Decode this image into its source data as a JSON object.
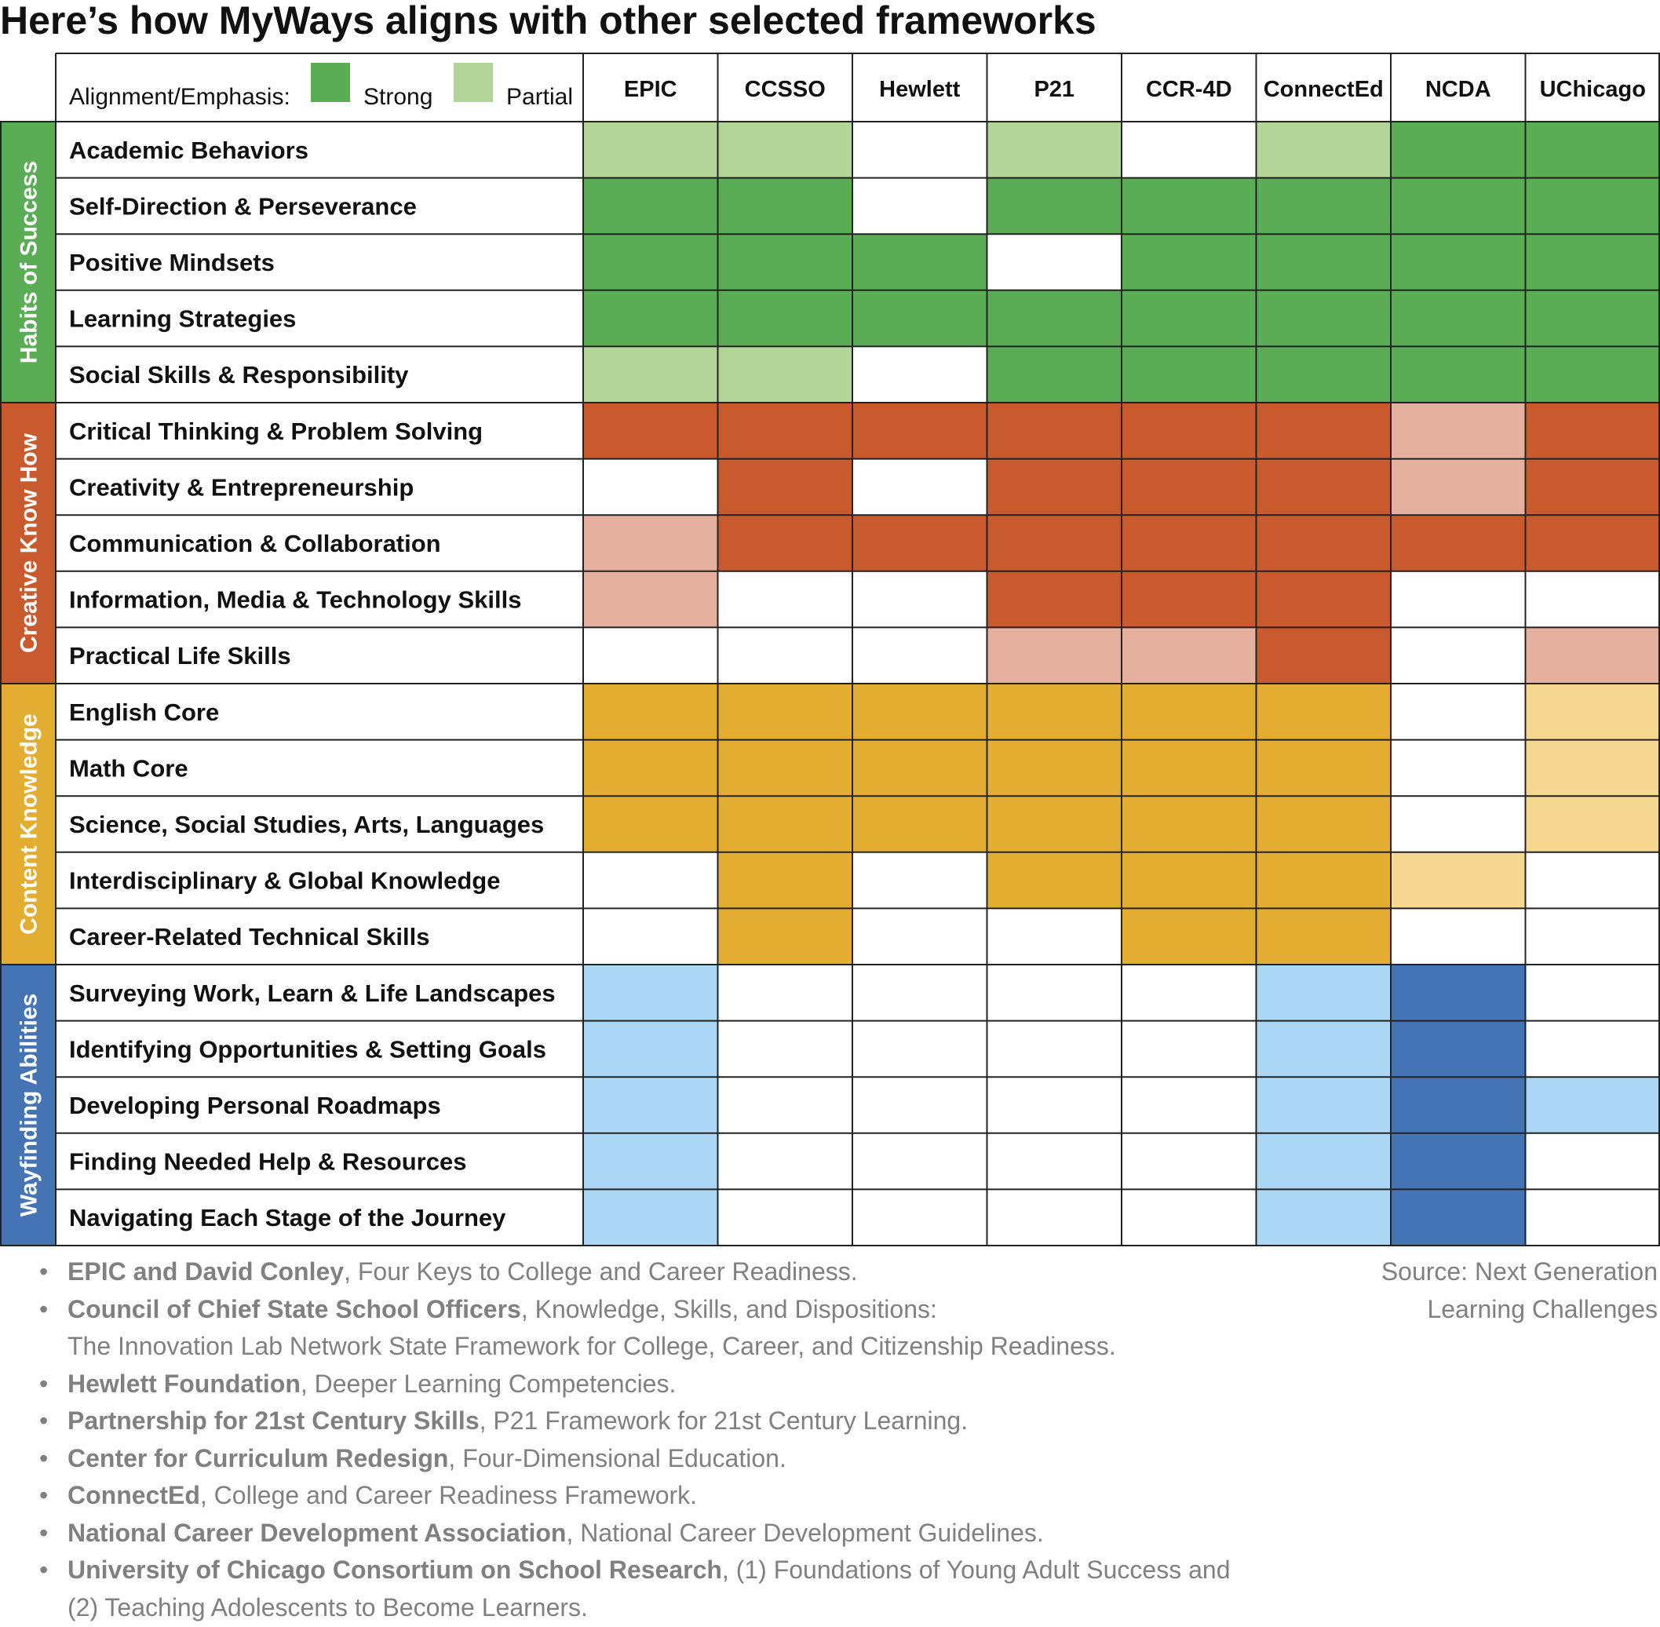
{
  "title": "Here’s how MyWays aligns with other selected frameworks",
  "legend": {
    "label": "Alignment/Emphasis:",
    "strong_label": "Strong",
    "partial_label": "Partial"
  },
  "chart_data": {
    "type": "heatmap",
    "title": "Here’s how MyWays aligns with other selected frameworks",
    "columns": [
      "EPIC",
      "CCSSO",
      "Hewlett",
      "P21",
      "CCR-4D",
      "ConnectEd",
      "NCDA",
      "UChicago"
    ],
    "value_legend": {
      "2": "Strong",
      "1": "Partial",
      "0": ""
    },
    "groups": [
      {
        "name": "Habits of Success",
        "strong_color": "#5aac55",
        "partial_color": "#b3d59a",
        "rows": [
          {
            "label": "Academic Behaviors",
            "values": [
              1,
              1,
              0,
              1,
              0,
              1,
              2,
              2
            ]
          },
          {
            "label": "Self-Direction & Perseverance",
            "values": [
              2,
              2,
              0,
              2,
              2,
              2,
              2,
              2
            ]
          },
          {
            "label": "Positive Mindsets",
            "values": [
              2,
              2,
              2,
              0,
              2,
              2,
              2,
              2
            ]
          },
          {
            "label": "Learning Strategies",
            "values": [
              2,
              2,
              2,
              2,
              2,
              2,
              2,
              2
            ]
          },
          {
            "label": "Social Skills & Responsibility",
            "values": [
              1,
              1,
              0,
              2,
              2,
              2,
              2,
              2
            ]
          }
        ]
      },
      {
        "name": "Creative Know How",
        "strong_color": "#c85a2e",
        "partial_color": "#e6b09e",
        "rows": [
          {
            "label": "Critical Thinking & Problem Solving",
            "values": [
              2,
              2,
              2,
              2,
              2,
              2,
              1,
              2
            ]
          },
          {
            "label": "Creativity & Entrepreneurship",
            "values": [
              0,
              2,
              0,
              2,
              2,
              2,
              1,
              2
            ]
          },
          {
            "label": "Communication & Collaboration",
            "values": [
              1,
              2,
              2,
              2,
              2,
              2,
              2,
              2
            ]
          },
          {
            "label": "Information, Media & Technology Skills",
            "values": [
              1,
              0,
              0,
              2,
              2,
              2,
              0,
              0
            ]
          },
          {
            "label": "Practical Life Skills",
            "values": [
              0,
              0,
              0,
              1,
              1,
              2,
              0,
              1
            ]
          }
        ]
      },
      {
        "name": "Content Knowledge",
        "strong_color": "#e2ad31",
        "partial_color": "#f6d890",
        "rows": [
          {
            "label": "English Core",
            "values": [
              2,
              2,
              2,
              2,
              2,
              2,
              0,
              1
            ]
          },
          {
            "label": "Math Core",
            "values": [
              2,
              2,
              2,
              2,
              2,
              2,
              0,
              1
            ]
          },
          {
            "label": "Science, Social Studies, Arts, Languages",
            "values": [
              2,
              2,
              2,
              2,
              2,
              2,
              0,
              1
            ]
          },
          {
            "label": "Interdisciplinary & Global Knowledge",
            "values": [
              0,
              2,
              0,
              2,
              2,
              2,
              1,
              0
            ]
          },
          {
            "label": "Career-Related Technical Skills",
            "values": [
              0,
              2,
              0,
              0,
              2,
              2,
              0,
              0
            ]
          }
        ]
      },
      {
        "name": "Wayfinding Abilities",
        "strong_color": "#4474b4",
        "partial_color": "#acd7f4",
        "rows": [
          {
            "label": "Surveying Work, Learn & Life Landscapes",
            "values": [
              1,
              0,
              0,
              0,
              0,
              1,
              2,
              0
            ]
          },
          {
            "label": "Identifying Opportunities & Setting Goals",
            "values": [
              1,
              0,
              0,
              0,
              0,
              1,
              2,
              0
            ]
          },
          {
            "label": "Developing Personal Roadmaps",
            "values": [
              1,
              0,
              0,
              0,
              0,
              1,
              2,
              1
            ]
          },
          {
            "label": "Finding Needed Help & Resources",
            "values": [
              1,
              0,
              0,
              0,
              0,
              1,
              2,
              0
            ]
          },
          {
            "label": "Navigating Each Stage of the Journey",
            "values": [
              1,
              0,
              0,
              0,
              0,
              1,
              2,
              0
            ]
          }
        ]
      }
    ]
  },
  "footnotes": [
    {
      "bold": "EPIC and David Conley",
      "text": ", Four Keys to College and Career Readiness."
    },
    {
      "bold": "Council of Chief State School Officers",
      "text": ", Knowledge, Skills, and Dispositions:",
      "cont": "The Innovation Lab Network State Framework for College, Career, and Citizenship Readiness."
    },
    {
      "bold": "Hewlett Foundation",
      "text": ", Deeper Learning Competencies."
    },
    {
      "bold": "Partnership for 21st Century Skills",
      "text": ", P21 Framework for 21st Century Learning."
    },
    {
      "bold": "Center for Curriculum Redesign",
      "text": ", Four-Dimensional Education."
    },
    {
      "bold": "ConnectEd",
      "text": ", College and Career Readiness Framework."
    },
    {
      "bold": "National Career Development Association",
      "text": ", National Career Development Guidelines."
    },
    {
      "bold": "University of Chicago Consortium on School Research",
      "text": ", (1) Foundations of Young Adult Success and",
      "cont": "(2) Teaching Adolescents to Become Learners."
    }
  ],
  "source": {
    "line1": "Source: Next Generation",
    "line2": "Learning Challenges"
  }
}
